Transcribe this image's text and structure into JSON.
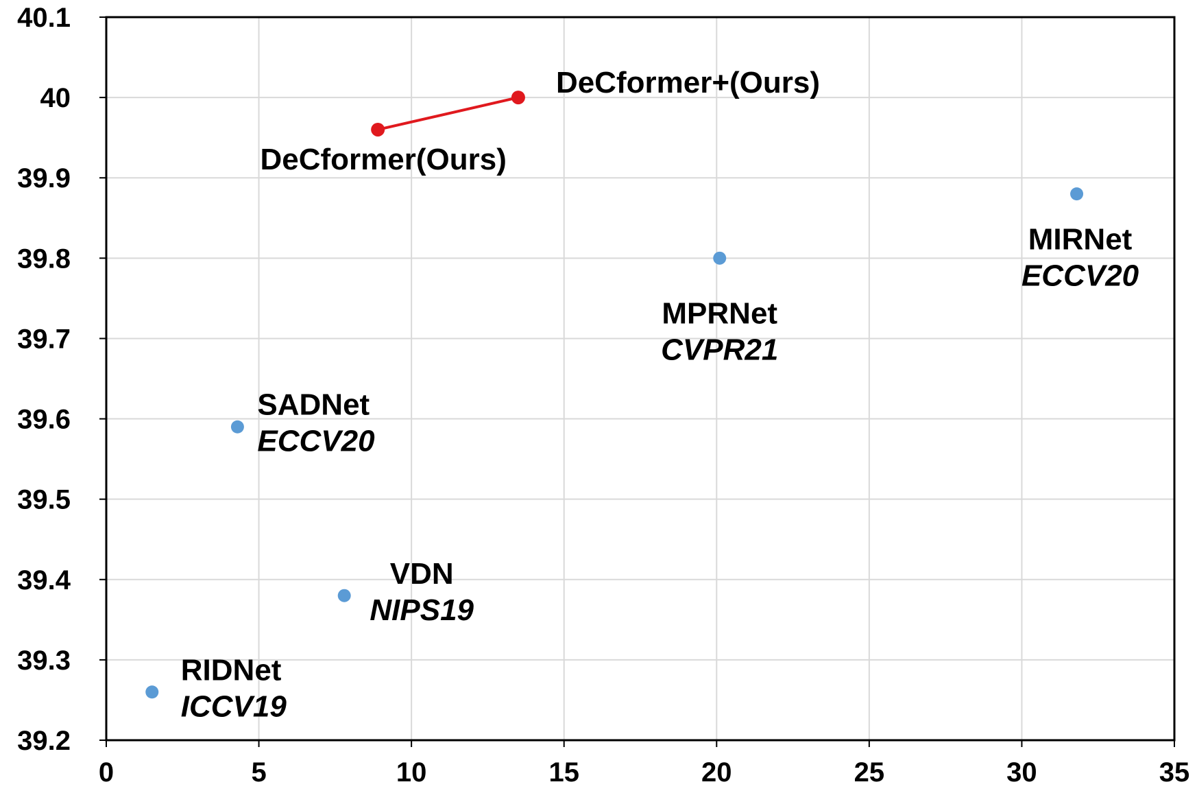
{
  "chart_data": {
    "type": "scatter",
    "title": "",
    "xlabel": "",
    "ylabel": "",
    "xlim": [
      0,
      35
    ],
    "ylim": [
      39.2,
      40.1
    ],
    "xticks": [
      "0",
      "5",
      "10",
      "15",
      "20",
      "25",
      "30",
      "35"
    ],
    "yticks": [
      "39.2",
      "39.3",
      "39.4",
      "39.5",
      "39.6",
      "39.7",
      "39.8",
      "39.9",
      "40",
      "40.1"
    ],
    "grid": true,
    "colors": {
      "baseline": "#5b9bd5",
      "ours": "#e0191e"
    },
    "points": [
      {
        "method": "RIDNet",
        "venue": "ICCV19",
        "x": 1.5,
        "y": 39.26,
        "group": "baseline"
      },
      {
        "method": "SADNet",
        "venue": "ECCV20",
        "x": 4.3,
        "y": 39.59,
        "group": "baseline"
      },
      {
        "method": "VDN",
        "venue": "NIPS19",
        "x": 7.8,
        "y": 39.38,
        "group": "baseline"
      },
      {
        "method": "MPRNet",
        "venue": "CVPR21",
        "x": 20.1,
        "y": 39.8,
        "group": "baseline"
      },
      {
        "method": "MIRNet",
        "venue": "ECCV20",
        "x": 31.8,
        "y": 39.88,
        "group": "baseline"
      },
      {
        "method": "DeCformer(Ours)",
        "venue": "",
        "x": 8.9,
        "y": 39.96,
        "group": "ours"
      },
      {
        "method": "DeCformer+(Ours)",
        "venue": "",
        "x": 13.5,
        "y": 40.0,
        "group": "ours"
      }
    ]
  }
}
